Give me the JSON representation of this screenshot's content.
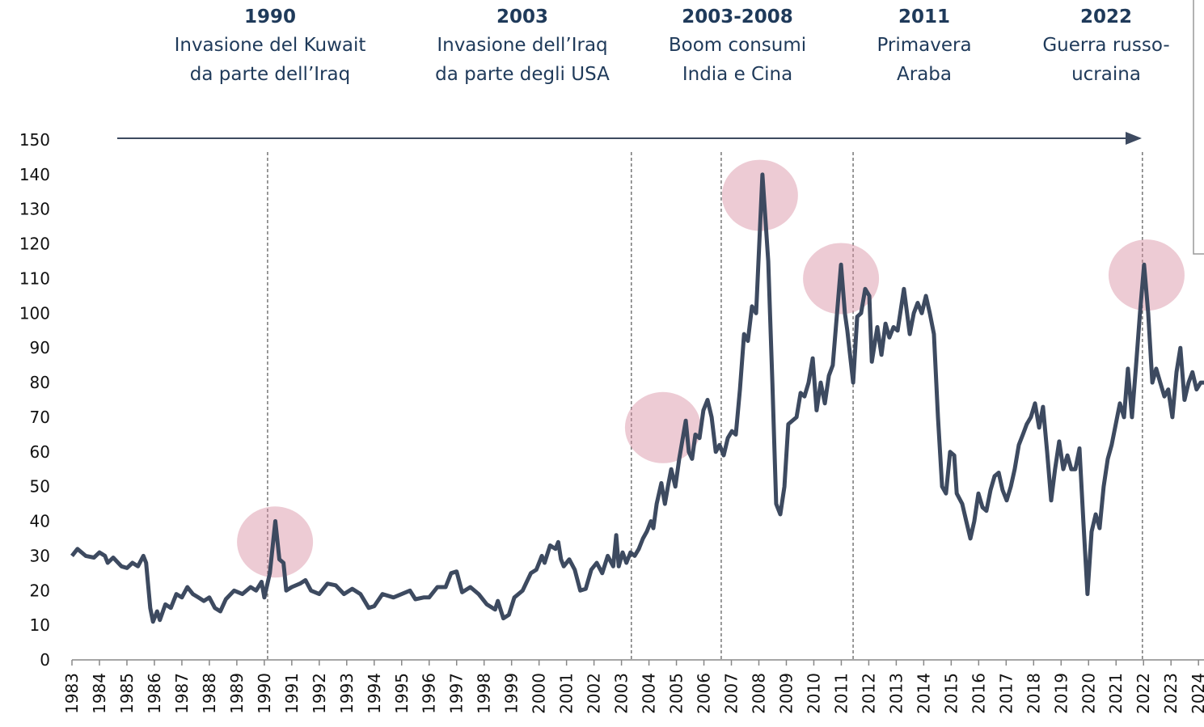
{
  "chart_data": {
    "type": "line",
    "x": [
      1983.0,
      1983.2,
      1983.5,
      1983.8,
      1984.0,
      1984.2,
      1984.3,
      1984.5,
      1984.8,
      1985.0,
      1985.2,
      1985.4,
      1985.6,
      1985.7,
      1985.85,
      1985.95,
      1986.1,
      1986.2,
      1986.4,
      1986.6,
      1986.8,
      1987.0,
      1987.2,
      1987.4,
      1987.6,
      1987.8,
      1988.0,
      1988.2,
      1988.4,
      1988.6,
      1988.9,
      1989.2,
      1989.5,
      1989.7,
      1989.9,
      1990.0,
      1990.2,
      1990.4,
      1990.55,
      1990.7,
      1990.8,
      1991.0,
      1991.3,
      1991.5,
      1991.7,
      1992.0,
      1992.3,
      1992.6,
      1992.9,
      1993.2,
      1993.5,
      1993.8,
      1994.0,
      1994.3,
      1994.7,
      1995.0,
      1995.3,
      1995.5,
      1995.8,
      1996.0,
      1996.3,
      1996.6,
      1996.8,
      1997.0,
      1997.2,
      1997.5,
      1997.8,
      1998.1,
      1998.4,
      1998.5,
      1998.7,
      1998.9,
      1999.1,
      1999.4,
      1999.7,
      1999.9,
      2000.1,
      2000.2,
      2000.4,
      2000.6,
      2000.7,
      2000.8,
      2000.9,
      2001.1,
      2001.3,
      2001.5,
      2001.7,
      2001.9,
      2002.1,
      2002.3,
      2002.5,
      2002.7,
      2002.81,
      2002.9,
      2003.04,
      2003.18,
      2003.33,
      2003.48,
      2003.63,
      2003.78,
      2003.92,
      2004.07,
      2004.16,
      2004.28,
      2004.45,
      2004.58,
      2004.69,
      2004.81,
      2004.96,
      2005.1,
      2005.34,
      2005.45,
      2005.57,
      2005.69,
      2005.84,
      2005.98,
      2006.13,
      2006.28,
      2006.43,
      2006.57,
      2006.72,
      2006.87,
      2007.02,
      2007.16,
      2007.31,
      2007.46,
      2007.6,
      2007.75,
      2007.9,
      2008.13,
      2008.34,
      2008.49,
      2008.63,
      2008.78,
      2008.93,
      2009.07,
      2009.37,
      2009.52,
      2009.66,
      2009.81,
      2009.96,
      2010.1,
      2010.25,
      2010.4,
      2010.55,
      2010.69,
      2010.99,
      2011.13,
      2011.22,
      2011.43,
      2011.58,
      2011.72,
      2011.87,
      2012.02,
      2012.11,
      2012.31,
      2012.46,
      2012.61,
      2012.75,
      2012.9,
      2013.05,
      2013.28,
      2013.49,
      2013.64,
      2013.78,
      2013.93,
      2014.08,
      2014.22,
      2014.37,
      2014.52,
      2014.67,
      2014.81,
      2014.96,
      2015.11,
      2015.2,
      2015.4,
      2015.55,
      2015.7,
      2015.84,
      2015.99,
      2016.14,
      2016.28,
      2016.43,
      2016.58,
      2016.73,
      2016.87,
      2017.02,
      2017.17,
      2017.31,
      2017.46,
      2017.61,
      2017.75,
      2017.9,
      2018.05,
      2018.2,
      2018.34,
      2018.49,
      2018.64,
      2018.78,
      2018.93,
      2019.08,
      2019.23,
      2019.37,
      2019.52,
      2019.67,
      2019.81,
      2019.96,
      2020.11,
      2020.26,
      2020.4,
      2020.55,
      2020.7,
      2020.84,
      2020.99,
      2021.14,
      2021.29,
      2021.43,
      2021.58,
      2021.73,
      2021.87,
      2022.02,
      2022.17,
      2022.32,
      2022.46,
      2022.61,
      2022.76,
      2022.9,
      2023.05,
      2023.2,
      2023.34,
      2023.49,
      2023.64,
      2023.78,
      2023.93,
      2024.08,
      2024.2
    ],
    "values": [
      30,
      32,
      30,
      29.5,
      31,
      30,
      28,
      29.5,
      27,
      26.5,
      28,
      27,
      30,
      28,
      15,
      11,
      14,
      11.5,
      16,
      15,
      19,
      18,
      21,
      19,
      18,
      17,
      18,
      15,
      14,
      17.5,
      20,
      19,
      21,
      20,
      22.5,
      18,
      25,
      40,
      29,
      28,
      20,
      21,
      22,
      23,
      20,
      19,
      22,
      21.5,
      19,
      20.5,
      19,
      15,
      15.5,
      19,
      18,
      19,
      20,
      17.5,
      18,
      18,
      21,
      21,
      25,
      25.5,
      19.5,
      21,
      19,
      16,
      14.5,
      17,
      12,
      13,
      18,
      20,
      25,
      26,
      30,
      28,
      33,
      32,
      34,
      29,
      27,
      29,
      26,
      20,
      20.5,
      26,
      28,
      25,
      30,
      27,
      36,
      27,
      31,
      28,
      31,
      30,
      32,
      35,
      37,
      40,
      38,
      45,
      51,
      45,
      50,
      55,
      50,
      58,
      69,
      60,
      58,
      65,
      64,
      72,
      75,
      70,
      60,
      62,
      59,
      64,
      66,
      65,
      78,
      94,
      92,
      102,
      100,
      140,
      115,
      80,
      45,
      42,
      50,
      68,
      70,
      77,
      76,
      80,
      87,
      72,
      80,
      74,
      82,
      85,
      114,
      100,
      95,
      80,
      99,
      100,
      107,
      105,
      86,
      96,
      88,
      97,
      93,
      96,
      95,
      107,
      94,
      100,
      103,
      100,
      105,
      100,
      94,
      70,
      50,
      48,
      60,
      59,
      48,
      45,
      40,
      35,
      40,
      48,
      44,
      43,
      49,
      53,
      54,
      49,
      46,
      50,
      55,
      62,
      65,
      68,
      70,
      74,
      67,
      73,
      60,
      46,
      55,
      63,
      55,
      59,
      55,
      55,
      61,
      40,
      19,
      37,
      42,
      38,
      50,
      58,
      62,
      68,
      74,
      70,
      84,
      70,
      85,
      100,
      114,
      100,
      80,
      84,
      80,
      76,
      78,
      70,
      83,
      90,
      75,
      80,
      83,
      78,
      80,
      80
    ],
    "color": "#3d4a60",
    "xlim": [
      1983,
      2024.2
    ],
    "xticks": [
      1983,
      1984,
      1985,
      1986,
      1987,
      1988,
      1989,
      1990,
      1991,
      1992,
      1993,
      1994,
      1995,
      1996,
      1997,
      1998,
      1999,
      2000,
      2001,
      2002,
      2003,
      2004,
      2005,
      2006,
      2007,
      2008,
      2009,
      2010,
      2011,
      2012,
      2013,
      2014,
      2015,
      2016,
      2017,
      2018,
      2019,
      2020,
      2021,
      2022,
      2023,
      2024
    ],
    "ylim": [
      0,
      150
    ],
    "yticks": [
      0,
      10,
      20,
      30,
      40,
      50,
      60,
      70,
      80,
      90,
      100,
      110,
      120,
      130,
      140,
      150
    ],
    "grid": false,
    "annotations": [
      {
        "x": 1990.12,
        "label": "1990",
        "text": [
          "Invasione del Kuwait",
          "da parte dell’Iraq"
        ]
      },
      {
        "x": 2003.36,
        "label": "2003",
        "text": [
          "Invasione dell’Iraq",
          "da parte degli USA"
        ]
      },
      {
        "x": 2006.63,
        "label": "2003-2008",
        "text": [
          "Boom consumi",
          "India e Cina"
        ]
      },
      {
        "x": 2011.43,
        "label": "2011",
        "text": [
          "Primavera",
          "Araba"
        ]
      },
      {
        "x": 2021.96,
        "label": "2022",
        "text": [
          "Guerra russo-",
          "ucraina"
        ]
      }
    ],
    "highlights": [
      {
        "x": 1990.39,
        "y": 34
      },
      {
        "x": 2004.51,
        "y": 67
      },
      {
        "x": 2008.04,
        "y": 134
      },
      {
        "x": 2010.99,
        "y": 110
      },
      {
        "x": 2022.11,
        "y": 111
      }
    ]
  }
}
